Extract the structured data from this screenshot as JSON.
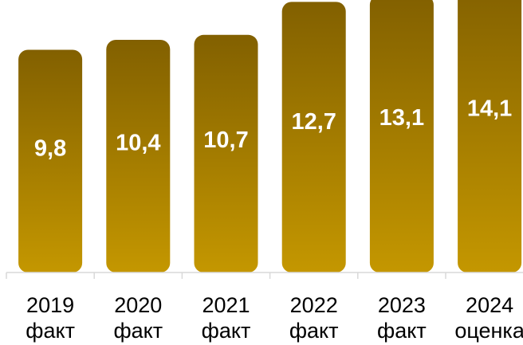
{
  "chart_data": {
    "type": "bar",
    "categories": [
      [
        "2019",
        "факт"
      ],
      [
        "2020",
        "факт"
      ],
      [
        "2021",
        "факт"
      ],
      [
        "2022",
        "факт"
      ],
      [
        "2023",
        "факт"
      ],
      [
        "2024",
        "оценка"
      ]
    ],
    "values": [
      9.8,
      10.4,
      10.7,
      12.7,
      13.1,
      14.1
    ],
    "data_labels": [
      "9,8",
      "10,4",
      "10,7",
      "12,7",
      "13,1",
      "14,1"
    ],
    "title": "",
    "xlabel": "",
    "ylabel": "",
    "ylim": [
      0,
      15
    ],
    "grid": false,
    "legend": "none",
    "colors": {
      "bar_top": "#826000",
      "bar_bottom": "#C49700",
      "bar_label": "#FFFFFF",
      "axis": "#D9D9D9"
    }
  }
}
